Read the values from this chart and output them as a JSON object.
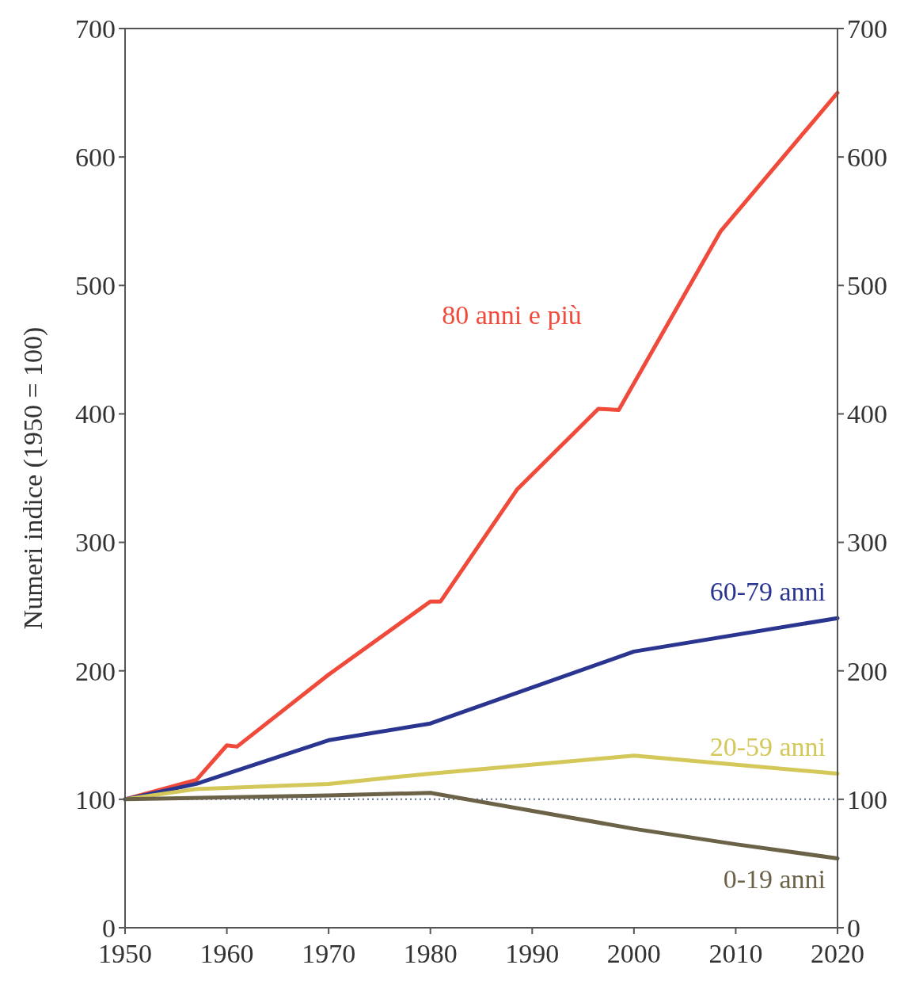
{
  "chart_data": {
    "type": "line",
    "ylabel": "Numeri indice (1950 = 100)",
    "xlim": [
      1950,
      2020
    ],
    "xticks": [
      1950,
      1960,
      1970,
      1980,
      1990,
      2000,
      2010,
      2020
    ],
    "ylim": [
      0,
      700
    ],
    "yticks": [
      0,
      100,
      200,
      300,
      400,
      500,
      600,
      700
    ],
    "y2lim": [
      0,
      700
    ],
    "y2ticks": [
      0,
      100,
      200,
      300,
      400,
      500,
      600,
      700
    ],
    "grid": false,
    "marker": "none",
    "line_style": "solid",
    "ref_lines": [
      {
        "axis": "y",
        "value": 100,
        "color": "#5a6a8a",
        "line_style": "dotted"
      }
    ],
    "series": [
      {
        "name": "80 anni e più",
        "color": "#f04a3a",
        "x": [
          1950,
          1957,
          1960,
          1961,
          1970,
          1980,
          1981,
          1988.5,
          1996.5,
          1998.5,
          2008.5,
          2020
        ],
        "values": [
          100,
          115,
          142,
          141,
          197,
          254,
          254,
          341,
          404,
          403,
          542,
          650
        ]
      },
      {
        "name": "60-79 anni",
        "color": "#2a3590",
        "x": [
          1950,
          1957,
          1970,
          1980,
          2000,
          2020
        ],
        "values": [
          100,
          112,
          146,
          159,
          215,
          241
        ]
      },
      {
        "name": "20-59 anni",
        "color": "#d4c85a",
        "x": [
          1950,
          1957,
          1970,
          1980,
          2000,
          2020
        ],
        "values": [
          100,
          108,
          112,
          120,
          134,
          120
        ]
      },
      {
        "name": "0-19 anni",
        "color": "#6b6247",
        "x": [
          1950,
          1970,
          1980,
          2000,
          2010,
          2020
        ],
        "values": [
          100,
          103,
          105,
          77,
          65,
          54
        ]
      }
    ]
  }
}
